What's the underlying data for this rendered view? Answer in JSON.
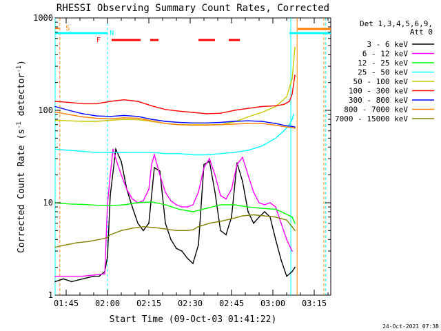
{
  "chart_data": {
    "type": "line",
    "title": "RHESSI Observing Summary Count Rates, Corrected",
    "xlabel": "Start Time (09-Oct-03 01:41:22)",
    "ylabel_main": "Corrected Count Rate (s",
    "ylabel_sup1": "-1",
    "ylabel_mid": " detector",
    "ylabel_sup2": "-1",
    "ylabel_end": ")",
    "footer": "24-Oct-2021 07:38",
    "yscale": "log",
    "ylim": [
      1,
      1000
    ],
    "xlim_minutes": [
      0,
      100
    ],
    "x_ticks": [
      {
        "min": 4,
        "label": "01:45"
      },
      {
        "min": 19,
        "label": "02:00"
      },
      {
        "min": 34,
        "label": "02:15"
      },
      {
        "min": 49,
        "label": "02:30"
      },
      {
        "min": 64,
        "label": "02:45"
      },
      {
        "min": 79,
        "label": "03:00"
      },
      {
        "min": 94,
        "label": "03:15"
      }
    ],
    "y_ticks": [
      {
        "v": 1,
        "label": "1"
      },
      {
        "v": 10,
        "label": "10"
      },
      {
        "v": 100,
        "label": "100"
      },
      {
        "v": 1000,
        "label": "1000"
      }
    ],
    "legend": {
      "header1": "Det 1,3,4,5,6,9,",
      "header2": "Att 0",
      "items": [
        {
          "label": "3 - 6 keV",
          "color": "#000000"
        },
        {
          "label": "6 - 12 keV",
          "color": "#ff00ff"
        },
        {
          "label": "12 - 25 keV",
          "color": "#00ff00"
        },
        {
          "label": "25 - 50 keV",
          "color": "#00ffff"
        },
        {
          "label": "50 - 100 keV",
          "color": "#c8c800"
        },
        {
          "label": "100 - 300 keV",
          "color": "#ff0000"
        },
        {
          "label": "300 - 800 keV",
          "color": "#0000ff"
        },
        {
          "label": "800 - 7000 keV",
          "color": "#ff8000"
        },
        {
          "label": "7000 - 15000 keV",
          "color": "#808000"
        }
      ]
    },
    "flags": {
      "saa_label": "S",
      "night_label": "N",
      "flare_label": "F",
      "saa_color": "#ff8000",
      "night_color": "#00ffff",
      "flare_color": "#ff0000",
      "flare_segments": [
        [
          20.5,
          31
        ],
        [
          34.5,
          37.5
        ],
        [
          52,
          58
        ],
        [
          63,
          67
        ]
      ],
      "night_segments": [
        [
          0,
          19
        ],
        [
          85,
          100
        ]
      ],
      "saa_segments": [
        [
          88,
          100
        ]
      ]
    },
    "vertical_markers": [
      {
        "min": 1.7,
        "color": "#ff8000",
        "style": "dashed"
      },
      {
        "min": 0.0,
        "color": "#00ffff",
        "style": "solid"
      },
      {
        "min": 19,
        "color": "#00ffff",
        "style": "dashed"
      },
      {
        "min": 85.5,
        "color": "#00ffff",
        "style": "solid"
      },
      {
        "min": 87.8,
        "color": "#ff8000",
        "style": "solid"
      },
      {
        "min": 97.5,
        "color": "#ff8000",
        "style": "dashed"
      },
      {
        "min": 98.2,
        "color": "#00ffff",
        "style": "dashed"
      }
    ],
    "series": [
      {
        "name": "3 - 6 keV",
        "color": "#000000",
        "x": [
          0,
          3,
          6,
          10,
          14,
          16,
          18,
          19,
          20,
          22,
          24,
          26,
          28,
          30,
          32,
          34,
          36,
          38,
          40,
          42,
          44,
          46,
          48,
          50,
          52,
          54,
          56,
          58,
          60,
          62,
          64,
          66,
          68,
          70,
          72,
          74,
          76,
          78,
          80,
          82,
          84,
          86,
          87
        ],
        "y": [
          1.4,
          1.5,
          1.4,
          1.5,
          1.6,
          1.6,
          1.8,
          2.6,
          12,
          38,
          28,
          14,
          9,
          6,
          5,
          6,
          24,
          22,
          6,
          4,
          3.2,
          3,
          2.5,
          2.2,
          3.5,
          26,
          28,
          13,
          5,
          4.5,
          7,
          27,
          17,
          8,
          6,
          7,
          8,
          7,
          4,
          2.4,
          1.6,
          1.8,
          2
        ]
      },
      {
        "name": "6 - 12 keV",
        "color": "#ff00ff",
        "x": [
          0,
          10,
          18,
          19,
          20,
          21,
          22,
          24,
          26,
          28,
          30,
          32,
          34,
          35,
          36,
          38,
          40,
          42,
          44,
          46,
          48,
          50,
          52,
          54,
          56,
          58,
          60,
          62,
          64,
          66,
          68,
          70,
          72,
          74,
          76,
          78,
          80,
          82,
          84,
          86
        ],
        "y": [
          1.6,
          1.6,
          1.7,
          9.6,
          20,
          38,
          30,
          20,
          14,
          11,
          10,
          10.5,
          14,
          26,
          33,
          20,
          13,
          10.5,
          9.5,
          9,
          9,
          9.5,
          13,
          24,
          30,
          20,
          12,
          11,
          14,
          26,
          31,
          20,
          13,
          10,
          9.5,
          10,
          9,
          6,
          4,
          3
        ]
      },
      {
        "name": "12 - 25 keV",
        "color": "#00ff00",
        "x": [
          0,
          5,
          10,
          15,
          20,
          25,
          30,
          35,
          40,
          45,
          50,
          55,
          60,
          65,
          70,
          75,
          80,
          82,
          84,
          86,
          87
        ],
        "y": [
          10,
          9.7,
          9.6,
          9.4,
          9.3,
          9.5,
          10,
          10.2,
          9.5,
          8.5,
          8,
          8.7,
          9.5,
          9.5,
          9,
          8.7,
          8.5,
          8,
          7.5,
          7,
          6
        ]
      },
      {
        "name": "25 - 50 keV",
        "color": "#00ffff",
        "x": [
          0,
          5,
          10,
          15,
          20,
          25,
          30,
          35,
          40,
          45,
          50,
          55,
          60,
          65,
          70,
          75,
          80,
          83,
          85,
          86,
          86.5
        ],
        "y": [
          38,
          37,
          36,
          35,
          35,
          35,
          35,
          35,
          34,
          34,
          33,
          33,
          34,
          35,
          37,
          41,
          50,
          60,
          70,
          80,
          90
        ]
      },
      {
        "name": "50 - 100 keV",
        "color": "#c8c800",
        "x": [
          0,
          5,
          10,
          15,
          20,
          25,
          30,
          35,
          40,
          45,
          50,
          55,
          60,
          65,
          70,
          75,
          80,
          84,
          86,
          87
        ],
        "y": [
          78,
          77,
          76,
          76,
          78,
          80,
          79,
          76,
          72,
          70,
          70,
          70,
          70,
          75,
          85,
          95,
          110,
          140,
          220,
          480
        ]
      },
      {
        "name": "100 - 300 keV",
        "color": "#ff0000",
        "x": [
          0,
          5,
          10,
          15,
          20,
          25,
          30,
          35,
          40,
          45,
          50,
          55,
          60,
          63,
          65,
          70,
          75,
          80,
          83,
          85,
          86,
          87
        ],
        "y": [
          125,
          122,
          118,
          118,
          125,
          130,
          125,
          112,
          102,
          98,
          95,
          92,
          93,
          97,
          100,
          105,
          110,
          112,
          116,
          125,
          150,
          240
        ]
      },
      {
        "name": "300 - 800 keV",
        "color": "#0000ff",
        "x": [
          0,
          5,
          10,
          15,
          20,
          25,
          30,
          35,
          40,
          45,
          50,
          55,
          60,
          65,
          70,
          75,
          80,
          84,
          86,
          87
        ],
        "y": [
          110,
          100,
          92,
          87,
          86,
          88,
          86,
          80,
          76,
          74,
          73,
          73,
          74,
          76,
          77,
          76,
          72,
          68,
          67,
          66
        ]
      },
      {
        "name": "800 - 7000 keV",
        "color": "#ff8000",
        "x": [
          0,
          5,
          10,
          15,
          20,
          25,
          30,
          35,
          40,
          45,
          50,
          55,
          60,
          65,
          70,
          75,
          80,
          84,
          86,
          87
        ],
        "y": [
          96,
          90,
          85,
          82,
          81,
          83,
          82,
          77,
          72,
          70,
          69,
          69,
          70,
          71,
          72,
          72,
          69,
          66,
          65,
          64
        ]
      },
      {
        "name": "7000 - 15000 keV",
        "color": "#808000",
        "x": [
          0,
          4,
          8,
          12,
          16,
          19,
          20,
          24,
          28,
          32,
          36,
          40,
          44,
          48,
          50,
          52,
          56,
          60,
          64,
          68,
          72,
          76,
          80,
          84,
          86,
          87
        ],
        "y": [
          3.3,
          3.5,
          3.7,
          3.8,
          4,
          4.2,
          4.5,
          5,
          5.3,
          5.5,
          5.4,
          5.2,
          5,
          5,
          5.1,
          5.5,
          6,
          6.3,
          6.7,
          7.2,
          7.4,
          7.2,
          7,
          6.5,
          5.5,
          5
        ]
      }
    ]
  }
}
